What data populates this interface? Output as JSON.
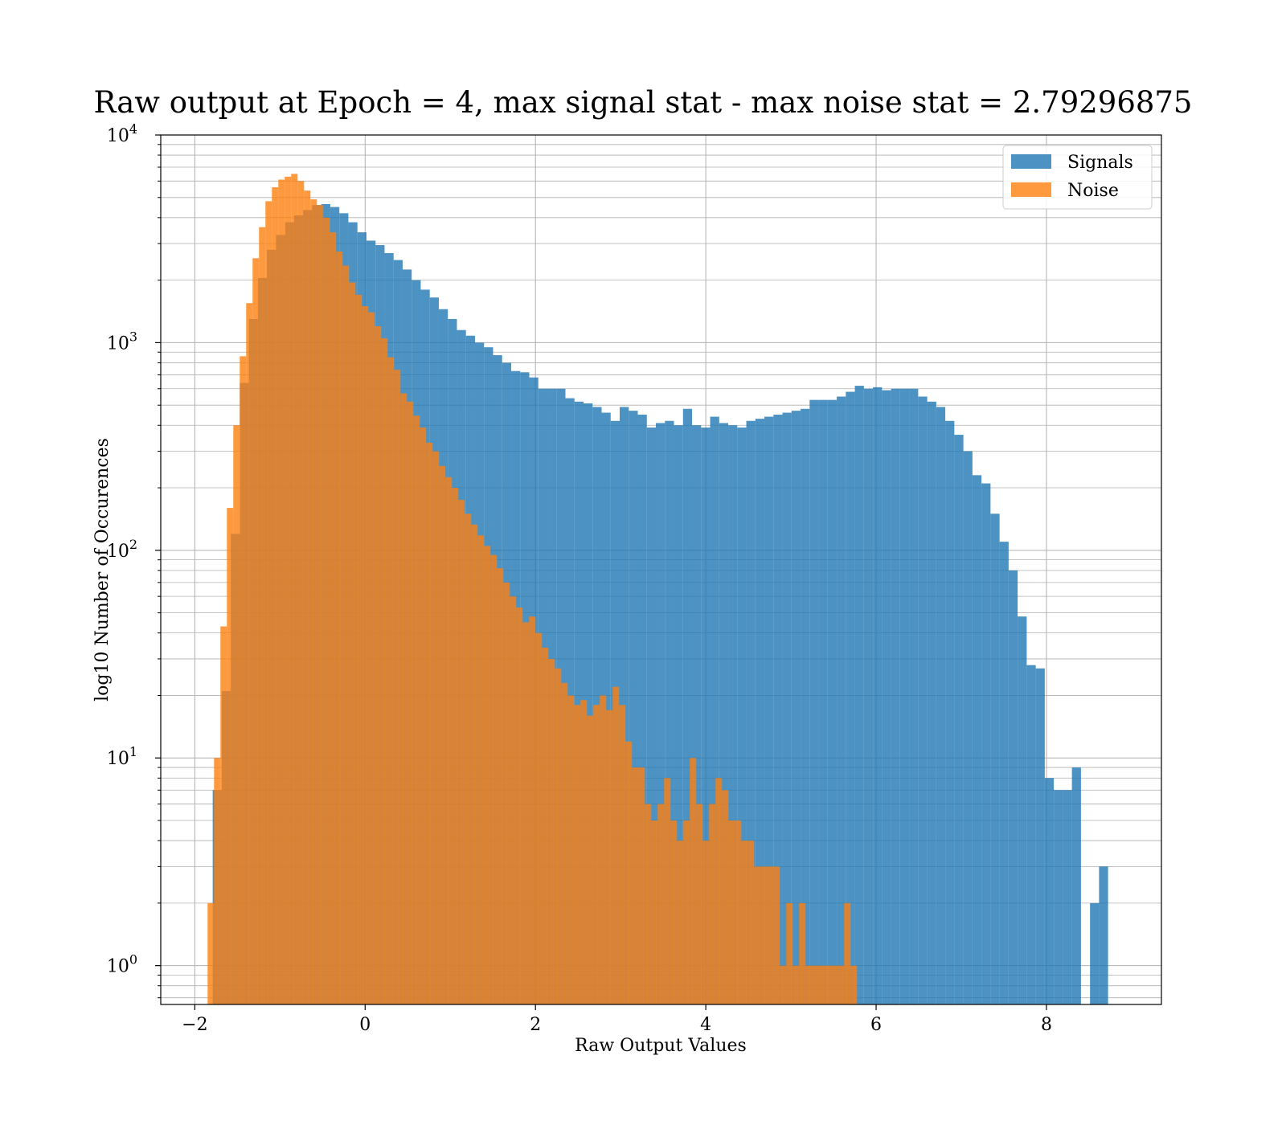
{
  "chart_data": {
    "type": "histogram",
    "title": "Raw output at Epoch = 4, max signal stat - max noise stat = 2.79296875",
    "xlabel": "Raw Output Values",
    "ylabel": "log10 Number of Occurences",
    "xlim": [
      -2.4,
      9.35
    ],
    "ylim": [
      0.65,
      10000
    ],
    "yscale": "log",
    "grid": true,
    "grid_minor_y": true,
    "legend_position": "top-right",
    "x_ticks": [
      -2,
      0,
      2,
      4,
      6,
      8
    ],
    "x_tick_labels": [
      "−2",
      "0",
      "2",
      "4",
      "6",
      "8"
    ],
    "y_ticks": [
      1,
      10,
      100,
      1000,
      10000
    ],
    "y_tick_labels": [
      {
        "base": "10",
        "exp": "0"
      },
      {
        "base": "10",
        "exp": "1"
      },
      {
        "base": "10",
        "exp": "2"
      },
      {
        "base": "10",
        "exp": "3"
      },
      {
        "base": "10",
        "exp": "4"
      }
    ],
    "series": [
      {
        "name": "Signals",
        "color": "#1f77b4",
        "alpha": 0.8,
        "bin_start": -1.79,
        "bin_width": 0.1062,
        "counts": [
          7,
          21,
          120,
          640,
          1300,
          2050,
          2800,
          3300,
          3800,
          4100,
          4350,
          4600,
          4650,
          4500,
          4200,
          3800,
          3400,
          3100,
          2950,
          2700,
          2500,
          2250,
          2000,
          1800,
          1650,
          1450,
          1300,
          1150,
          1080,
          1000,
          950,
          870,
          800,
          730,
          720,
          680,
          600,
          600,
          600,
          540,
          520,
          510,
          490,
          460,
          420,
          490,
          470,
          450,
          390,
          410,
          420,
          400,
          480,
          400,
          390,
          440,
          410,
          400,
          390,
          420,
          430,
          440,
          450,
          460,
          470,
          480,
          530,
          530,
          530,
          550,
          580,
          620,
          600,
          610,
          590,
          600,
          600,
          600,
          550,
          520,
          490,
          420,
          360,
          300,
          230,
          210,
          150,
          110,
          80,
          48,
          28,
          27,
          8,
          7,
          7,
          9,
          0,
          2,
          3
        ]
      },
      {
        "name": "Noise",
        "color": "#ff7f0e",
        "alpha": 0.8,
        "bin_start": -1.85,
        "bin_width": 0.0755,
        "counts": [
          2,
          10,
          43,
          160,
          400,
          860,
          1550,
          2550,
          3600,
          4800,
          5600,
          6100,
          6300,
          6500,
          6000,
          5400,
          4900,
          4600,
          4000,
          3400,
          2750,
          2350,
          1950,
          1700,
          1500,
          1400,
          1200,
          1050,
          850,
          740,
          570,
          520,
          445,
          390,
          330,
          300,
          255,
          225,
          200,
          175,
          150,
          133,
          118,
          105,
          95,
          82,
          70,
          60,
          53,
          45,
          48,
          40,
          34,
          30,
          27,
          23,
          20,
          18,
          19,
          16,
          18,
          20,
          17,
          22,
          18,
          12,
          9,
          9,
          6,
          5,
          6,
          8,
          5,
          4,
          5,
          10,
          6,
          4,
          6,
          8,
          7,
          5,
          5,
          4,
          4,
          3,
          3,
          3,
          3,
          1,
          2,
          1,
          2,
          1,
          1,
          1,
          1,
          1,
          1,
          2,
          1
        ]
      }
    ]
  }
}
